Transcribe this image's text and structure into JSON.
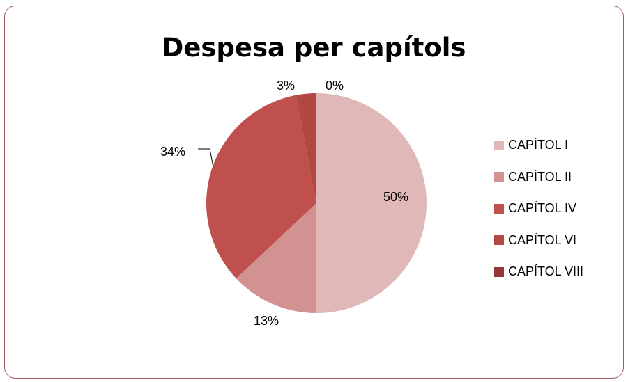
{
  "chart_data": {
    "type": "pie",
    "title": "Despesa per capítols",
    "categories": [
      "CAPÍTOL I",
      "CAPÍTOL II",
      "CAPÍTOL IV",
      "CAPÍTOL VI",
      "CAPÍTOL VIII"
    ],
    "values": [
      50,
      13,
      34,
      3,
      0
    ],
    "data_labels": [
      "50%",
      "13%",
      "34%",
      "3%",
      "0%"
    ],
    "colors": [
      "#e0b8b8",
      "#d39292",
      "#c0504d",
      "#b24744",
      "#953735"
    ],
    "legend_position": "right"
  }
}
